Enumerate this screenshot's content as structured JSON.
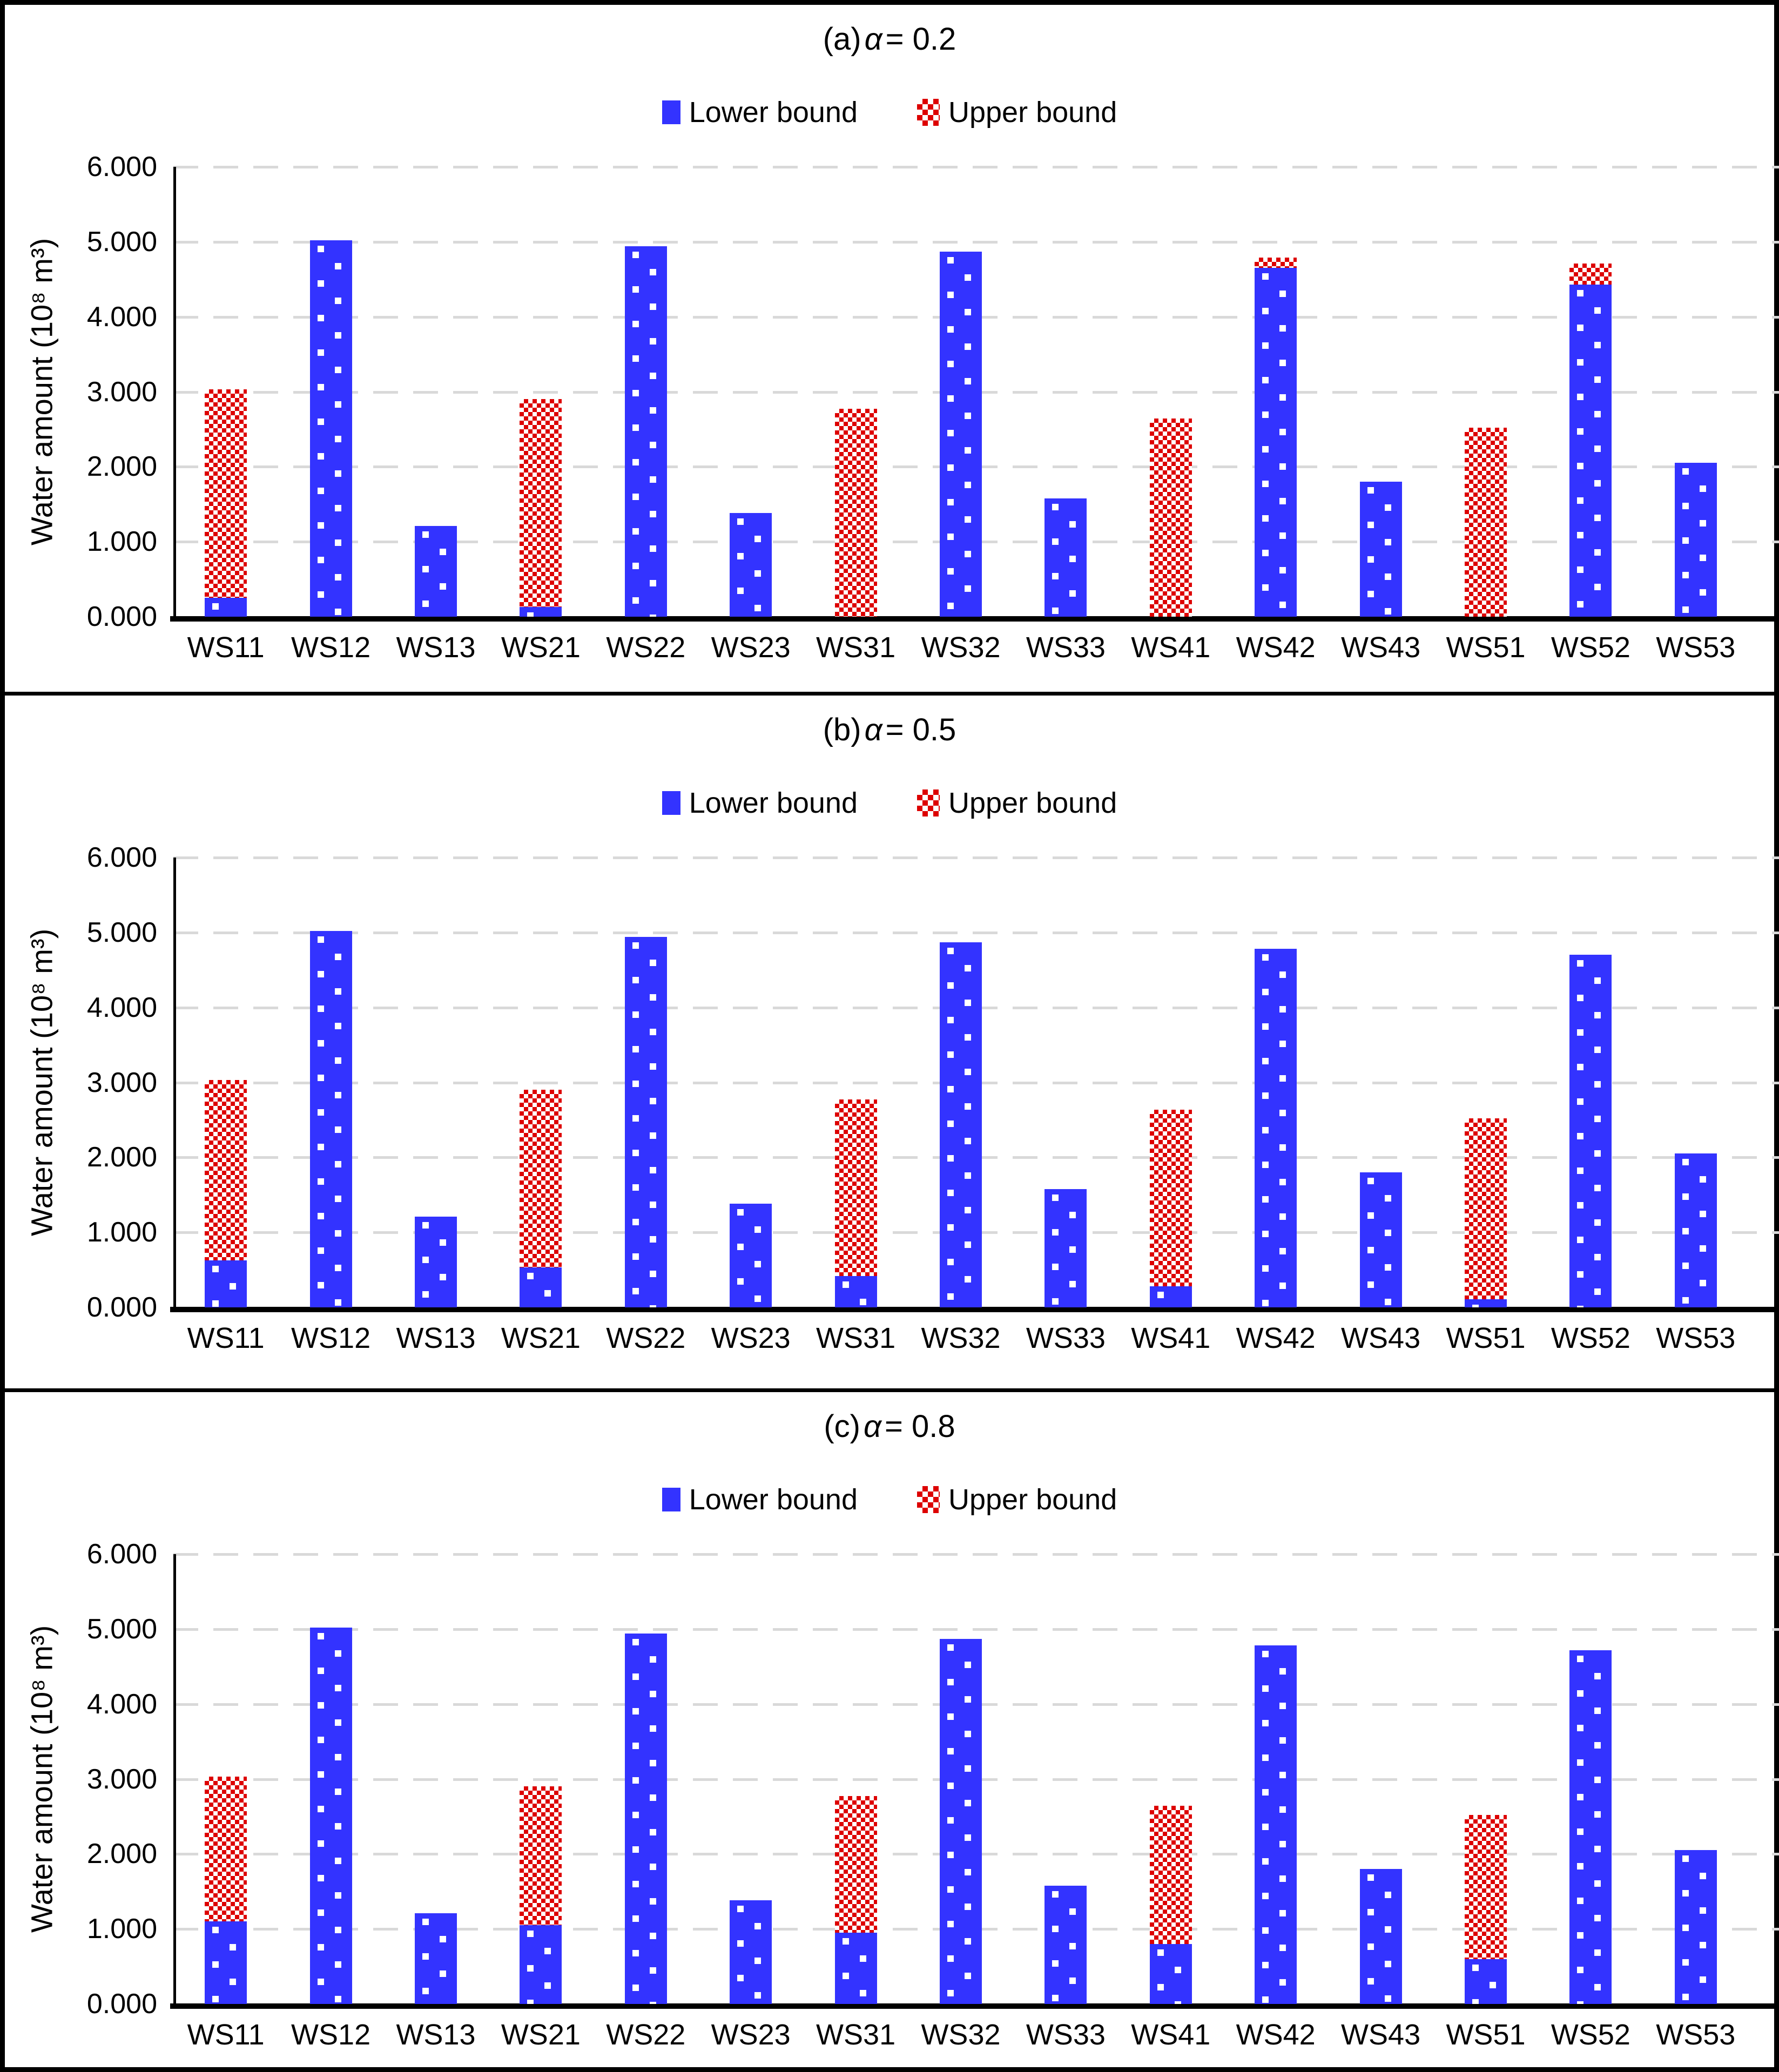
{
  "figure": {
    "y_axis_label": "Water amount (10⁸ m³)",
    "y_ticks": [
      "0.000",
      "1.000",
      "2.000",
      "3.000",
      "4.000",
      "5.000",
      "6.000"
    ],
    "legend": {
      "lower": "Lower bound",
      "upper": "Upper bound"
    },
    "colors": {
      "lower_fill": "#3333FF",
      "upper_fill": "#DD0000",
      "gridline": "#D9D9D9",
      "axis": "#000000",
      "background": "#FFFFFF"
    }
  },
  "chart_data": [
    {
      "type": "bar",
      "stacked": true,
      "title": "(a) α = 0.2",
      "title_prefix": "(a)",
      "title_symbol": "α",
      "title_suffix": "= 0.2",
      "ylabel": "Water amount (10⁸ m³)",
      "ylim": [
        0,
        6
      ],
      "grid": true,
      "legend_position": "top",
      "categories": [
        "WS11",
        "WS12",
        "WS13",
        "WS21",
        "WS22",
        "WS23",
        "WS31",
        "WS32",
        "WS33",
        "WS41",
        "WS42",
        "WS43",
        "WS51",
        "WS52",
        "WS53"
      ],
      "series": [
        {
          "name": "Lower bound",
          "values": [
            0.25,
            5.02,
            1.21,
            0.13,
            4.94,
            1.38,
            0,
            4.87,
            1.58,
            0,
            4.65,
            1.8,
            0,
            4.43,
            2.05
          ]
        },
        {
          "name": "Upper bound",
          "stack_totals": [
            3.03,
            5.02,
            1.21,
            2.9,
            4.94,
            1.38,
            2.77,
            4.87,
            1.58,
            2.64,
            4.79,
            1.8,
            2.52,
            4.71,
            2.05
          ]
        }
      ]
    },
    {
      "type": "bar",
      "stacked": true,
      "title": "(b) α = 0.5",
      "title_prefix": "(b)",
      "title_symbol": "α",
      "title_suffix": "= 0.5",
      "ylabel": "Water amount (10⁸ m³)",
      "ylim": [
        0,
        6
      ],
      "grid": true,
      "legend_position": "top",
      "categories": [
        "WS11",
        "WS12",
        "WS13",
        "WS21",
        "WS22",
        "WS23",
        "WS31",
        "WS32",
        "WS33",
        "WS41",
        "WS42",
        "WS43",
        "WS51",
        "WS52",
        "WS53"
      ],
      "series": [
        {
          "name": "Lower bound",
          "values": [
            0.63,
            5.02,
            1.21,
            0.53,
            4.94,
            1.38,
            0.42,
            4.87,
            1.58,
            0.28,
            4.78,
            1.8,
            0.11,
            4.7,
            2.05
          ]
        },
        {
          "name": "Upper bound",
          "stack_totals": [
            3.03,
            5.02,
            1.21,
            2.9,
            4.94,
            1.38,
            2.77,
            4.87,
            1.58,
            2.64,
            4.78,
            1.8,
            2.52,
            4.7,
            2.05
          ]
        }
      ]
    },
    {
      "type": "bar",
      "stacked": true,
      "title": "(c) α = 0.8",
      "title_prefix": "(c)",
      "title_symbol": "α",
      "title_suffix": "= 0.8",
      "ylabel": "Water amount (10⁸ m³)",
      "ylim": [
        0,
        6
      ],
      "grid": true,
      "legend_position": "top",
      "categories": [
        "WS11",
        "WS12",
        "WS13",
        "WS21",
        "WS22",
        "WS23",
        "WS31",
        "WS32",
        "WS33",
        "WS41",
        "WS42",
        "WS43",
        "WS51",
        "WS52",
        "WS53"
      ],
      "series": [
        {
          "name": "Lower bound",
          "values": [
            1.1,
            5.02,
            1.21,
            1.05,
            4.94,
            1.38,
            0.95,
            4.87,
            1.58,
            0.8,
            4.78,
            1.8,
            0.6,
            4.72,
            2.05
          ]
        },
        {
          "name": "Upper bound",
          "stack_totals": [
            3.03,
            5.02,
            1.21,
            2.9,
            4.94,
            1.38,
            2.77,
            4.87,
            1.58,
            2.64,
            4.78,
            1.8,
            2.52,
            4.72,
            2.05
          ]
        }
      ]
    }
  ]
}
